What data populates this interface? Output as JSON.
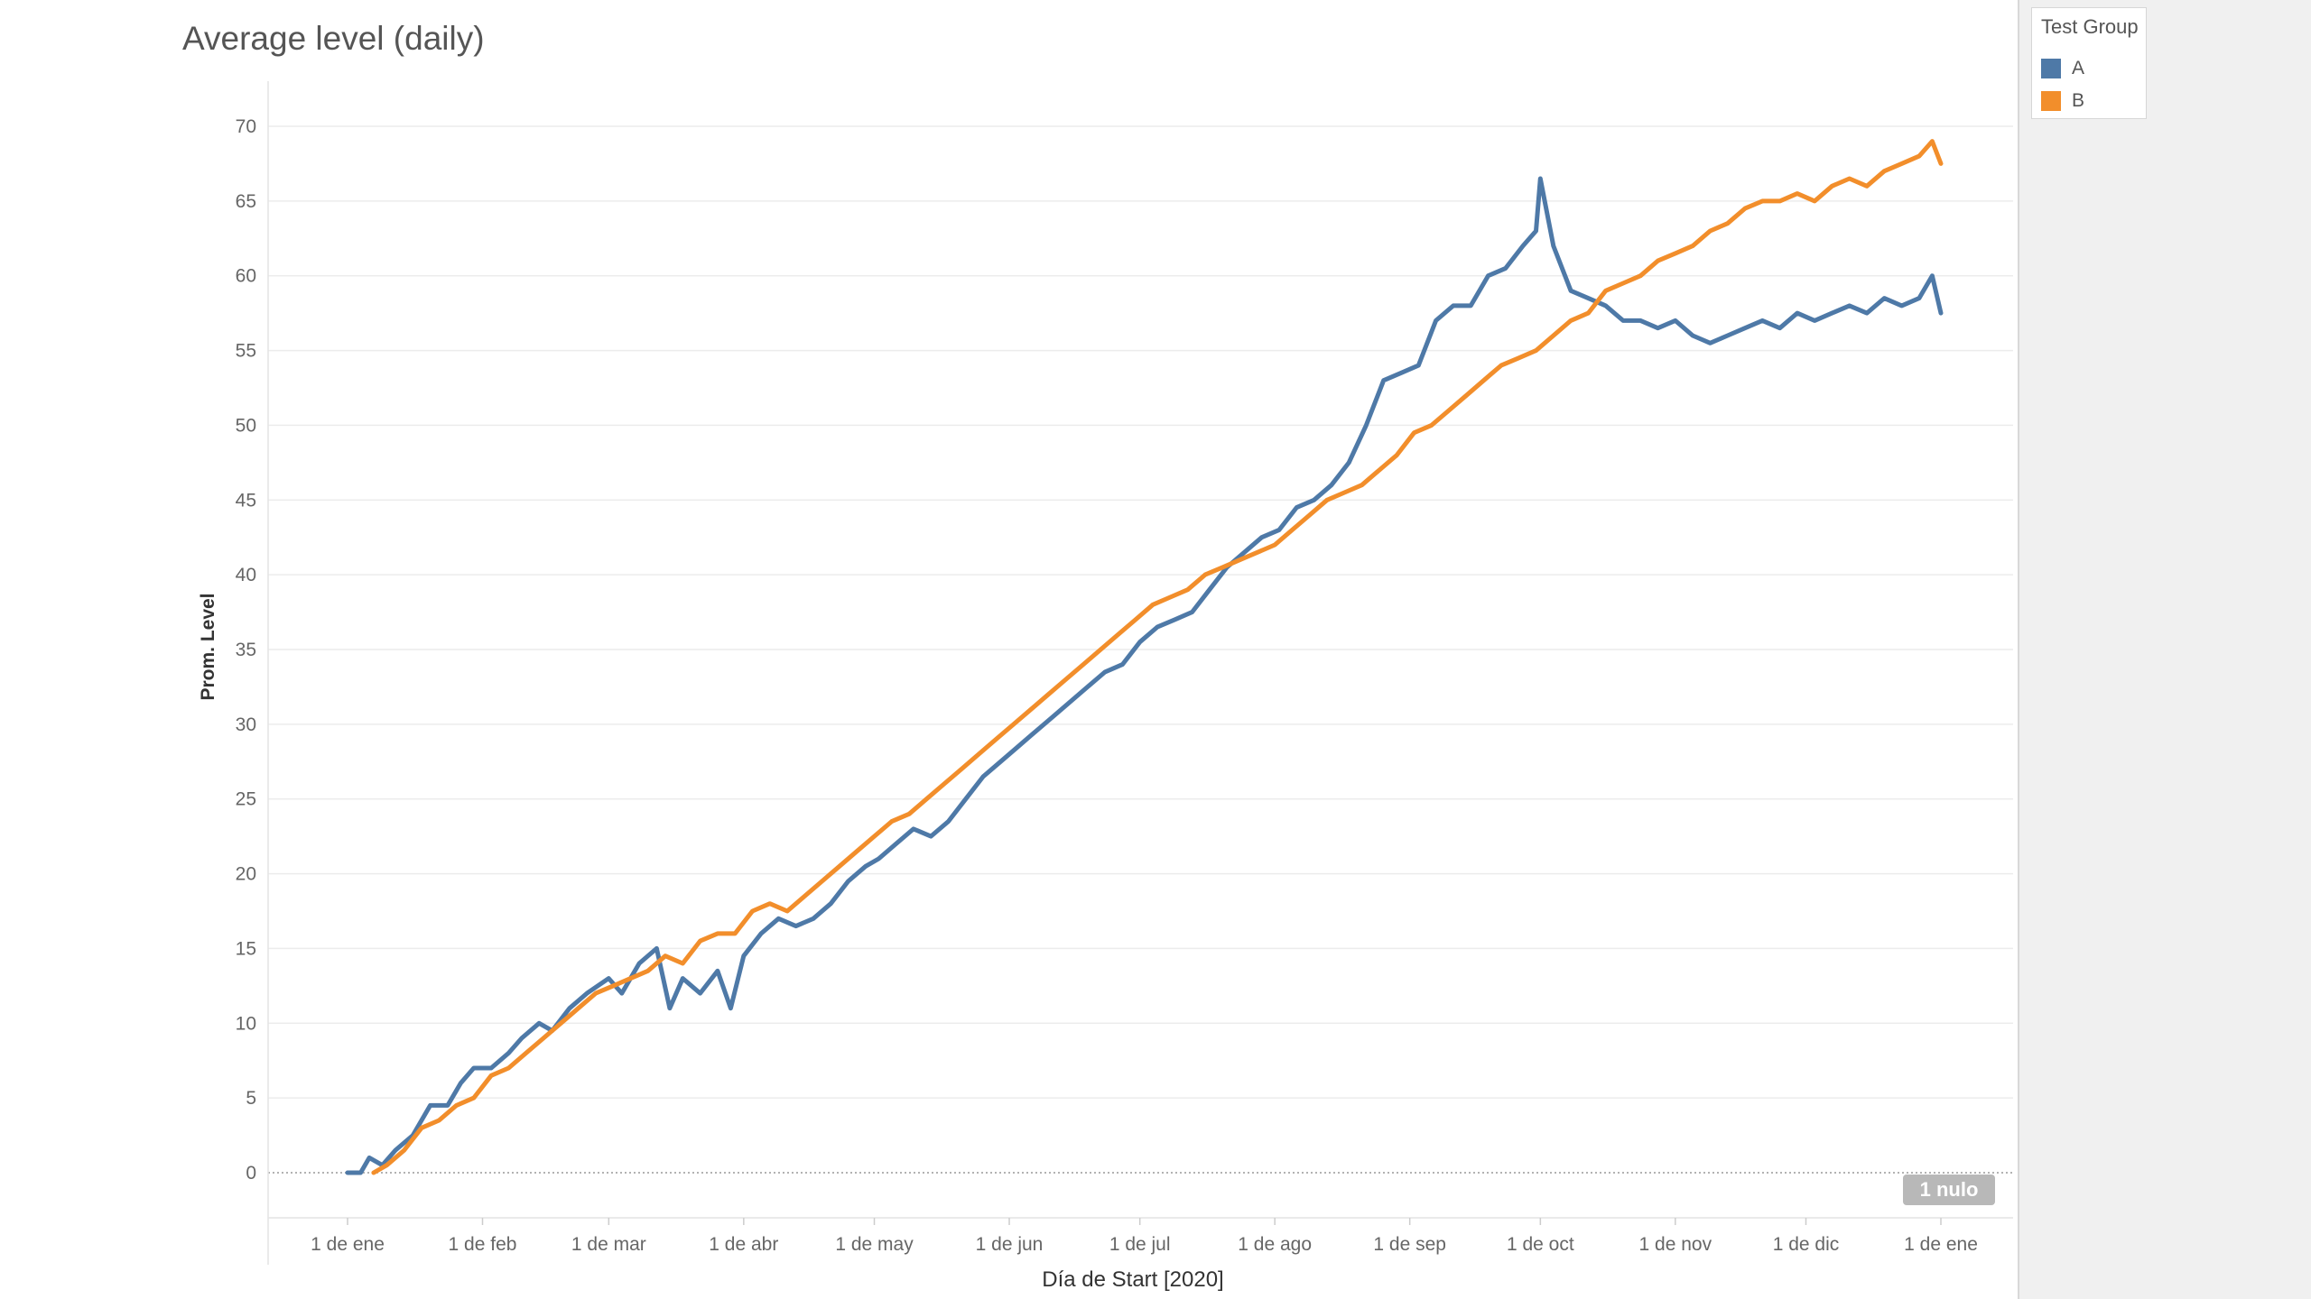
{
  "chart_data": {
    "type": "line",
    "title": "Average level (daily)",
    "xlabel": "Día de Start [2020]",
    "ylabel": "Prom. Level",
    "ylim": [
      0,
      70
    ],
    "yticks": [
      0,
      5,
      10,
      15,
      20,
      25,
      30,
      35,
      40,
      45,
      50,
      55,
      60,
      65,
      70
    ],
    "x_ticks": [
      {
        "label": "1 de ene",
        "date": "2020-01-01"
      },
      {
        "label": "1 de feb",
        "date": "2020-02-01"
      },
      {
        "label": "1 de mar",
        "date": "2020-03-01"
      },
      {
        "label": "1 de abr",
        "date": "2020-04-01"
      },
      {
        "label": "1 de may",
        "date": "2020-05-01"
      },
      {
        "label": "1 de jun",
        "date": "2020-06-01"
      },
      {
        "label": "1 de jul",
        "date": "2020-07-01"
      },
      {
        "label": "1 de ago",
        "date": "2020-08-01"
      },
      {
        "label": "1 de sep",
        "date": "2020-09-01"
      },
      {
        "label": "1 de oct",
        "date": "2020-10-01"
      },
      {
        "label": "1 de nov",
        "date": "2020-11-01"
      },
      {
        "label": "1 de dic",
        "date": "2020-12-01"
      },
      {
        "label": "1 de ene",
        "date": "2021-01-01"
      }
    ],
    "grid": true,
    "legend_title": "Test Group",
    "legend_position": "top-right",
    "null_badge": "1 nulo",
    "series": [
      {
        "name": "A",
        "color": "#4e79a7",
        "points": [
          [
            "2020-01-01",
            0.0
          ],
          [
            "2020-01-04",
            0.0
          ],
          [
            "2020-01-06",
            1.0
          ],
          [
            "2020-01-09",
            0.5
          ],
          [
            "2020-01-12",
            1.5
          ],
          [
            "2020-01-16",
            2.5
          ],
          [
            "2020-01-20",
            4.5
          ],
          [
            "2020-01-24",
            4.5
          ],
          [
            "2020-01-27",
            6.0
          ],
          [
            "2020-01-30",
            7.0
          ],
          [
            "2020-02-03",
            7.0
          ],
          [
            "2020-02-07",
            8.0
          ],
          [
            "2020-02-10",
            9.0
          ],
          [
            "2020-02-14",
            10.0
          ],
          [
            "2020-02-17",
            9.5
          ],
          [
            "2020-02-21",
            11.0
          ],
          [
            "2020-02-25",
            12.0
          ],
          [
            "2020-03-01",
            13.0
          ],
          [
            "2020-03-04",
            12.0
          ],
          [
            "2020-03-08",
            14.0
          ],
          [
            "2020-03-12",
            15.0
          ],
          [
            "2020-03-15",
            11.0
          ],
          [
            "2020-03-18",
            13.0
          ],
          [
            "2020-03-22",
            12.0
          ],
          [
            "2020-03-26",
            13.5
          ],
          [
            "2020-03-29",
            11.0
          ],
          [
            "2020-04-01",
            14.5
          ],
          [
            "2020-04-05",
            16.0
          ],
          [
            "2020-04-09",
            17.0
          ],
          [
            "2020-04-13",
            16.5
          ],
          [
            "2020-04-17",
            17.0
          ],
          [
            "2020-04-21",
            18.0
          ],
          [
            "2020-04-25",
            19.5
          ],
          [
            "2020-04-29",
            20.5
          ],
          [
            "2020-05-02",
            21.0
          ],
          [
            "2020-05-06",
            22.0
          ],
          [
            "2020-05-10",
            23.0
          ],
          [
            "2020-05-14",
            22.5
          ],
          [
            "2020-05-18",
            23.5
          ],
          [
            "2020-05-22",
            25.0
          ],
          [
            "2020-05-26",
            26.5
          ],
          [
            "2020-05-30",
            27.5
          ],
          [
            "2020-06-03",
            28.5
          ],
          [
            "2020-06-07",
            29.5
          ],
          [
            "2020-06-11",
            30.5
          ],
          [
            "2020-06-15",
            31.5
          ],
          [
            "2020-06-19",
            32.5
          ],
          [
            "2020-06-23",
            33.5
          ],
          [
            "2020-06-27",
            34.0
          ],
          [
            "2020-07-01",
            35.5
          ],
          [
            "2020-07-05",
            36.5
          ],
          [
            "2020-07-09",
            37.0
          ],
          [
            "2020-07-13",
            37.5
          ],
          [
            "2020-07-17",
            39.0
          ],
          [
            "2020-07-21",
            40.5
          ],
          [
            "2020-07-25",
            41.5
          ],
          [
            "2020-07-29",
            42.5
          ],
          [
            "2020-08-02",
            43.0
          ],
          [
            "2020-08-06",
            44.5
          ],
          [
            "2020-08-10",
            45.0
          ],
          [
            "2020-08-14",
            46.0
          ],
          [
            "2020-08-18",
            47.5
          ],
          [
            "2020-08-22",
            50.0
          ],
          [
            "2020-08-26",
            53.0
          ],
          [
            "2020-08-30",
            53.5
          ],
          [
            "2020-09-03",
            54.0
          ],
          [
            "2020-09-07",
            57.0
          ],
          [
            "2020-09-11",
            58.0
          ],
          [
            "2020-09-15",
            58.0
          ],
          [
            "2020-09-19",
            60.0
          ],
          [
            "2020-09-23",
            60.5
          ],
          [
            "2020-09-27",
            62.0
          ],
          [
            "2020-09-30",
            63.0
          ],
          [
            "2020-10-01",
            66.5
          ],
          [
            "2020-10-04",
            62.0
          ],
          [
            "2020-10-08",
            59.0
          ],
          [
            "2020-10-12",
            58.5
          ],
          [
            "2020-10-16",
            58.0
          ],
          [
            "2020-10-20",
            57.0
          ],
          [
            "2020-10-24",
            57.0
          ],
          [
            "2020-10-28",
            56.5
          ],
          [
            "2020-11-01",
            57.0
          ],
          [
            "2020-11-05",
            56.0
          ],
          [
            "2020-11-09",
            55.5
          ],
          [
            "2020-11-13",
            56.0
          ],
          [
            "2020-11-17",
            56.5
          ],
          [
            "2020-11-21",
            57.0
          ],
          [
            "2020-11-25",
            56.5
          ],
          [
            "2020-11-29",
            57.5
          ],
          [
            "2020-12-03",
            57.0
          ],
          [
            "2020-12-07",
            57.5
          ],
          [
            "2020-12-11",
            58.0
          ],
          [
            "2020-12-15",
            57.5
          ],
          [
            "2020-12-19",
            58.5
          ],
          [
            "2020-12-23",
            58.0
          ],
          [
            "2020-12-27",
            58.5
          ],
          [
            "2020-12-30",
            60.0
          ],
          [
            "2021-01-01",
            57.5
          ]
        ]
      },
      {
        "name": "B",
        "color": "#f28e2b",
        "points": [
          [
            "2020-01-07",
            0.0
          ],
          [
            "2020-01-10",
            0.5
          ],
          [
            "2020-01-14",
            1.5
          ],
          [
            "2020-01-18",
            3.0
          ],
          [
            "2020-01-22",
            3.5
          ],
          [
            "2020-01-26",
            4.5
          ],
          [
            "2020-01-30",
            5.0
          ],
          [
            "2020-02-03",
            6.5
          ],
          [
            "2020-02-07",
            7.0
          ],
          [
            "2020-02-11",
            8.0
          ],
          [
            "2020-02-15",
            9.0
          ],
          [
            "2020-02-19",
            10.0
          ],
          [
            "2020-02-23",
            11.0
          ],
          [
            "2020-02-27",
            12.0
          ],
          [
            "2020-03-02",
            12.5
          ],
          [
            "2020-03-06",
            13.0
          ],
          [
            "2020-03-10",
            13.5
          ],
          [
            "2020-03-14",
            14.5
          ],
          [
            "2020-03-18",
            14.0
          ],
          [
            "2020-03-22",
            15.5
          ],
          [
            "2020-03-26",
            16.0
          ],
          [
            "2020-03-30",
            16.0
          ],
          [
            "2020-04-03",
            17.5
          ],
          [
            "2020-04-07",
            18.0
          ],
          [
            "2020-04-11",
            17.5
          ],
          [
            "2020-04-15",
            18.5
          ],
          [
            "2020-04-19",
            19.5
          ],
          [
            "2020-04-23",
            20.5
          ],
          [
            "2020-04-27",
            21.5
          ],
          [
            "2020-05-01",
            22.5
          ],
          [
            "2020-05-05",
            23.5
          ],
          [
            "2020-05-09",
            24.0
          ],
          [
            "2020-05-13",
            25.0
          ],
          [
            "2020-05-17",
            26.0
          ],
          [
            "2020-05-21",
            27.0
          ],
          [
            "2020-05-25",
            28.0
          ],
          [
            "2020-05-29",
            29.0
          ],
          [
            "2020-06-02",
            30.0
          ],
          [
            "2020-06-06",
            31.0
          ],
          [
            "2020-06-10",
            32.0
          ],
          [
            "2020-06-14",
            33.0
          ],
          [
            "2020-06-18",
            34.0
          ],
          [
            "2020-06-22",
            35.0
          ],
          [
            "2020-06-26",
            36.0
          ],
          [
            "2020-06-30",
            37.0
          ],
          [
            "2020-07-04",
            38.0
          ],
          [
            "2020-07-08",
            38.5
          ],
          [
            "2020-07-12",
            39.0
          ],
          [
            "2020-07-16",
            40.0
          ],
          [
            "2020-07-20",
            40.5
          ],
          [
            "2020-07-24",
            41.0
          ],
          [
            "2020-07-28",
            41.5
          ],
          [
            "2020-08-01",
            42.0
          ],
          [
            "2020-08-05",
            43.0
          ],
          [
            "2020-08-09",
            44.0
          ],
          [
            "2020-08-13",
            45.0
          ],
          [
            "2020-08-17",
            45.5
          ],
          [
            "2020-08-21",
            46.0
          ],
          [
            "2020-08-25",
            47.0
          ],
          [
            "2020-08-29",
            48.0
          ],
          [
            "2020-09-02",
            49.5
          ],
          [
            "2020-09-06",
            50.0
          ],
          [
            "2020-09-10",
            51.0
          ],
          [
            "2020-09-14",
            52.0
          ],
          [
            "2020-09-18",
            53.0
          ],
          [
            "2020-09-22",
            54.0
          ],
          [
            "2020-09-26",
            54.5
          ],
          [
            "2020-09-30",
            55.0
          ],
          [
            "2020-10-04",
            56.0
          ],
          [
            "2020-10-08",
            57.0
          ],
          [
            "2020-10-12",
            57.5
          ],
          [
            "2020-10-16",
            59.0
          ],
          [
            "2020-10-20",
            59.5
          ],
          [
            "2020-10-24",
            60.0
          ],
          [
            "2020-10-28",
            61.0
          ],
          [
            "2020-11-01",
            61.5
          ],
          [
            "2020-11-05",
            62.0
          ],
          [
            "2020-11-09",
            63.0
          ],
          [
            "2020-11-13",
            63.5
          ],
          [
            "2020-11-17",
            64.5
          ],
          [
            "2020-11-21",
            65.0
          ],
          [
            "2020-11-25",
            65.0
          ],
          [
            "2020-11-29",
            65.5
          ],
          [
            "2020-12-03",
            65.0
          ],
          [
            "2020-12-07",
            66.0
          ],
          [
            "2020-12-11",
            66.5
          ],
          [
            "2020-12-15",
            66.0
          ],
          [
            "2020-12-19",
            67.0
          ],
          [
            "2020-12-23",
            67.5
          ],
          [
            "2020-12-27",
            68.0
          ],
          [
            "2020-12-30",
            69.0
          ],
          [
            "2021-01-01",
            67.5
          ]
        ]
      }
    ]
  }
}
